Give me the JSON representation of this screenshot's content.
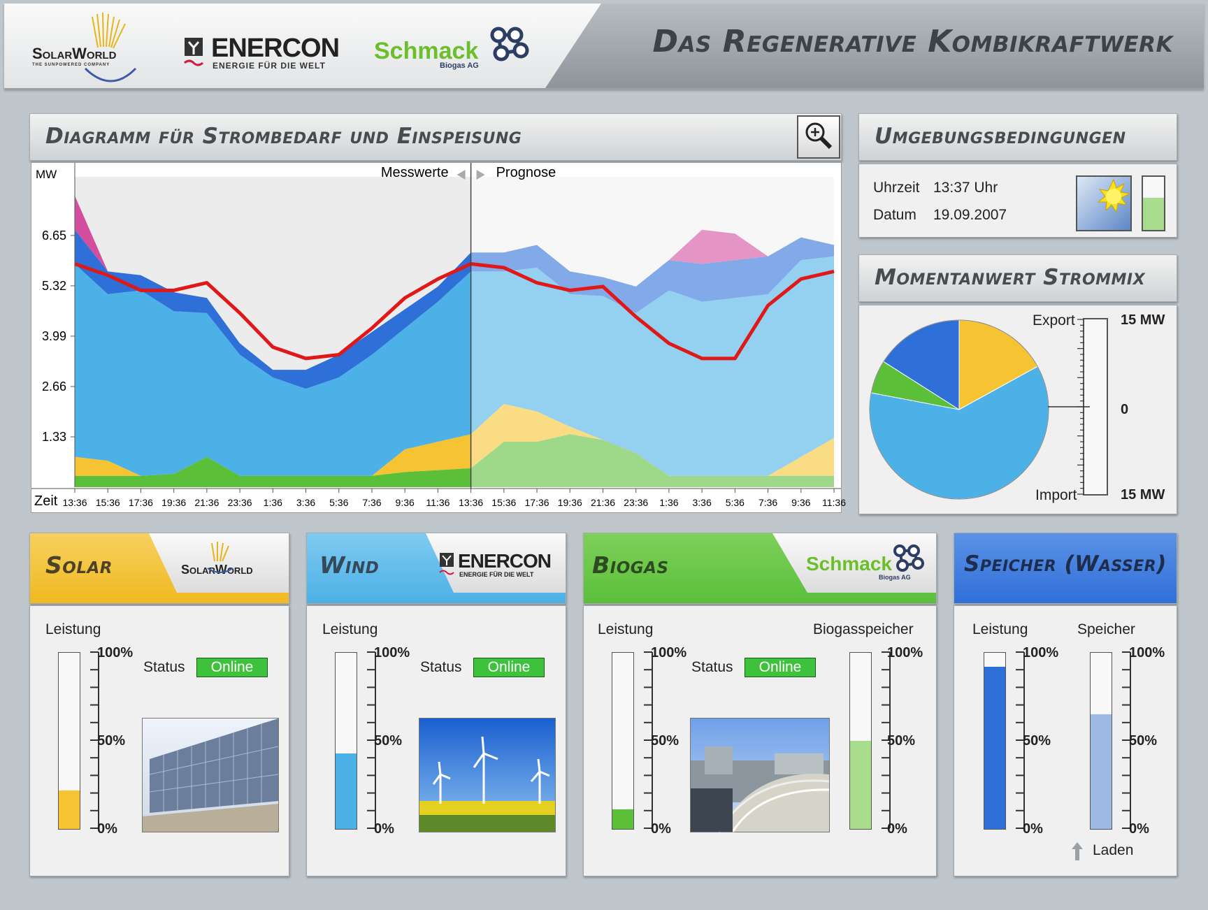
{
  "header": {
    "title": "Das Regenerative Kombikraftwerk",
    "logos": {
      "solarworld": {
        "name": "SolarWorld",
        "tagline": "THE SUNPOWERED COMPANY"
      },
      "enercon": {
        "name": "ENERCON",
        "tagline": "ENERGIE FÜR DIE WELT"
      },
      "schmack": {
        "name": "Schmack",
        "tagline": "Biogas AG"
      }
    }
  },
  "diagram": {
    "title": "Diagramm für Strombedarf und Einspeisung",
    "zoom_icon": "magnifier-plus-icon",
    "measured_label": "Messwerte",
    "forecast_label": "Prognose",
    "y_unit": "MW",
    "x_label": "Zeit"
  },
  "chart_data": {
    "type": "area",
    "ylabel": "MW",
    "xlabel": "Zeit",
    "yticks": [
      1.33,
      2.66,
      3.99,
      5.32,
      6.65
    ],
    "xticks": [
      "13:36",
      "15:36",
      "17:36",
      "19:36",
      "21:36",
      "23:36",
      "1:36",
      "3:36",
      "5:36",
      "7:36",
      "9:36",
      "11:36",
      "13:36",
      "15:36",
      "17:36",
      "19:36",
      "21:36",
      "23:36",
      "1:36",
      "3:36",
      "5:36",
      "7:36",
      "9:36",
      "11:36"
    ],
    "ylim": [
      0,
      8.2
    ],
    "measured_until_index": 12,
    "series": [
      {
        "name": "Biogas",
        "color": "#5bbf3a",
        "values": [
          0.3,
          0.3,
          0.3,
          0.35,
          0.8,
          0.3,
          0.3,
          0.3,
          0.3,
          0.3,
          0.4,
          0.45,
          0.5,
          1.2,
          1.2,
          1.4,
          1.25,
          0.9,
          0.3,
          0.3,
          0.3,
          0.3,
          0.3,
          0.3
        ]
      },
      {
        "name": "Solar",
        "color": "#f6c433",
        "values": [
          0.5,
          0.4,
          0.0,
          0.0,
          0.0,
          0.0,
          0.0,
          0.0,
          0.0,
          0.0,
          0.6,
          0.75,
          0.9,
          1.0,
          0.8,
          0.2,
          0.0,
          0.0,
          0.0,
          0.0,
          0.0,
          0.0,
          0.5,
          1.0
        ]
      },
      {
        "name": "Wind",
        "color": "#4cb1e6",
        "values": [
          5.1,
          4.4,
          4.9,
          4.3,
          3.8,
          3.2,
          2.6,
          2.3,
          2.6,
          3.2,
          3.2,
          3.7,
          4.3,
          3.5,
          3.8,
          3.5,
          3.8,
          3.7,
          4.9,
          4.6,
          4.7,
          4.8,
          5.2,
          4.8
        ]
      },
      {
        "name": "Speicher (Wasser)",
        "color": "#2f6fd8",
        "values": [
          0.9,
          0.6,
          0.4,
          0.5,
          0.4,
          0.3,
          0.2,
          0.5,
          0.6,
          0.6,
          0.5,
          0.4,
          0.5,
          0.5,
          0.6,
          0.6,
          0.5,
          0.7,
          0.8,
          1.0,
          1.0,
          1.0,
          0.6,
          0.3
        ]
      },
      {
        "name": "Import",
        "color": "#d34e9e",
        "values": [
          0.9,
          0.0,
          0.0,
          0.0,
          0.0,
          0.0,
          0.0,
          0.0,
          0.0,
          0.0,
          0.0,
          0.0,
          0.0,
          0.0,
          0.0,
          0.0,
          0.0,
          0.0,
          0.0,
          0.9,
          0.7,
          0.0,
          0.0,
          0.0
        ]
      }
    ],
    "demand": {
      "name": "Strombedarf",
      "color": "#e01818",
      "values": [
        5.9,
        5.6,
        5.2,
        5.2,
        5.4,
        4.6,
        3.7,
        3.4,
        3.5,
        4.2,
        5.0,
        5.5,
        5.9,
        5.8,
        5.4,
        5.2,
        5.3,
        4.5,
        3.8,
        3.4,
        3.4,
        4.8,
        5.5,
        5.7
      ]
    }
  },
  "environment": {
    "title": "Umgebungsbedingungen",
    "time_label": "Uhrzeit",
    "time_value": "13:37 Uhr",
    "date_label": "Datum",
    "date_value": "19.09.2007",
    "weather_icon": "sun-icon",
    "level_fraction": 0.6
  },
  "mix": {
    "title": "Momentanwert Strommix",
    "export_label": "Export",
    "import_label": "Import",
    "scale_top": "15 MW",
    "scale_mid": "0",
    "scale_bottom": "15 MW",
    "net_value": 0,
    "slices": [
      {
        "name": "Solar",
        "value": 17,
        "color": "#f6c433"
      },
      {
        "name": "Wind",
        "value": 61,
        "color": "#4cb1e6"
      },
      {
        "name": "Biogas",
        "value": 6,
        "color": "#5bbf3a"
      },
      {
        "name": "Speicher (Wasser)",
        "value": 16,
        "color": "#2f6fd8"
      }
    ]
  },
  "cards": {
    "solar": {
      "title": "Solar",
      "power_label": "Leistung",
      "status_label": "Status",
      "status": "Online",
      "power": 0.22,
      "color": "#f6c433",
      "g100": "100%",
      "g50": "50%",
      "g0": "0%"
    },
    "wind": {
      "title": "Wind",
      "power_label": "Leistung",
      "status_label": "Status",
      "status": "Online",
      "power": 0.43,
      "color": "#4cb1e6",
      "g100": "100%",
      "g50": "50%",
      "g0": "0%"
    },
    "biogas": {
      "title": "Biogas",
      "power_label": "Leistung",
      "status_label": "Status",
      "status": "Online",
      "power": 0.11,
      "color": "#5bbf3a",
      "storage_label": "Biogasspeicher",
      "storage": 0.5,
      "storage_color": "#a9dd8e",
      "g100": "100%",
      "g50": "50%",
      "g0": "0%"
    },
    "storage": {
      "title": "Speicher (Wasser)",
      "power_label": "Leistung",
      "power": 0.92,
      "color": "#2f6fd8",
      "storage_label": "Speicher",
      "storage": 0.65,
      "storage_color": "#9eb8e4",
      "charge_label": "Laden",
      "charge_icon": "arrow-up-icon",
      "g100": "100%",
      "g50": "50%",
      "g0": "0%"
    }
  }
}
